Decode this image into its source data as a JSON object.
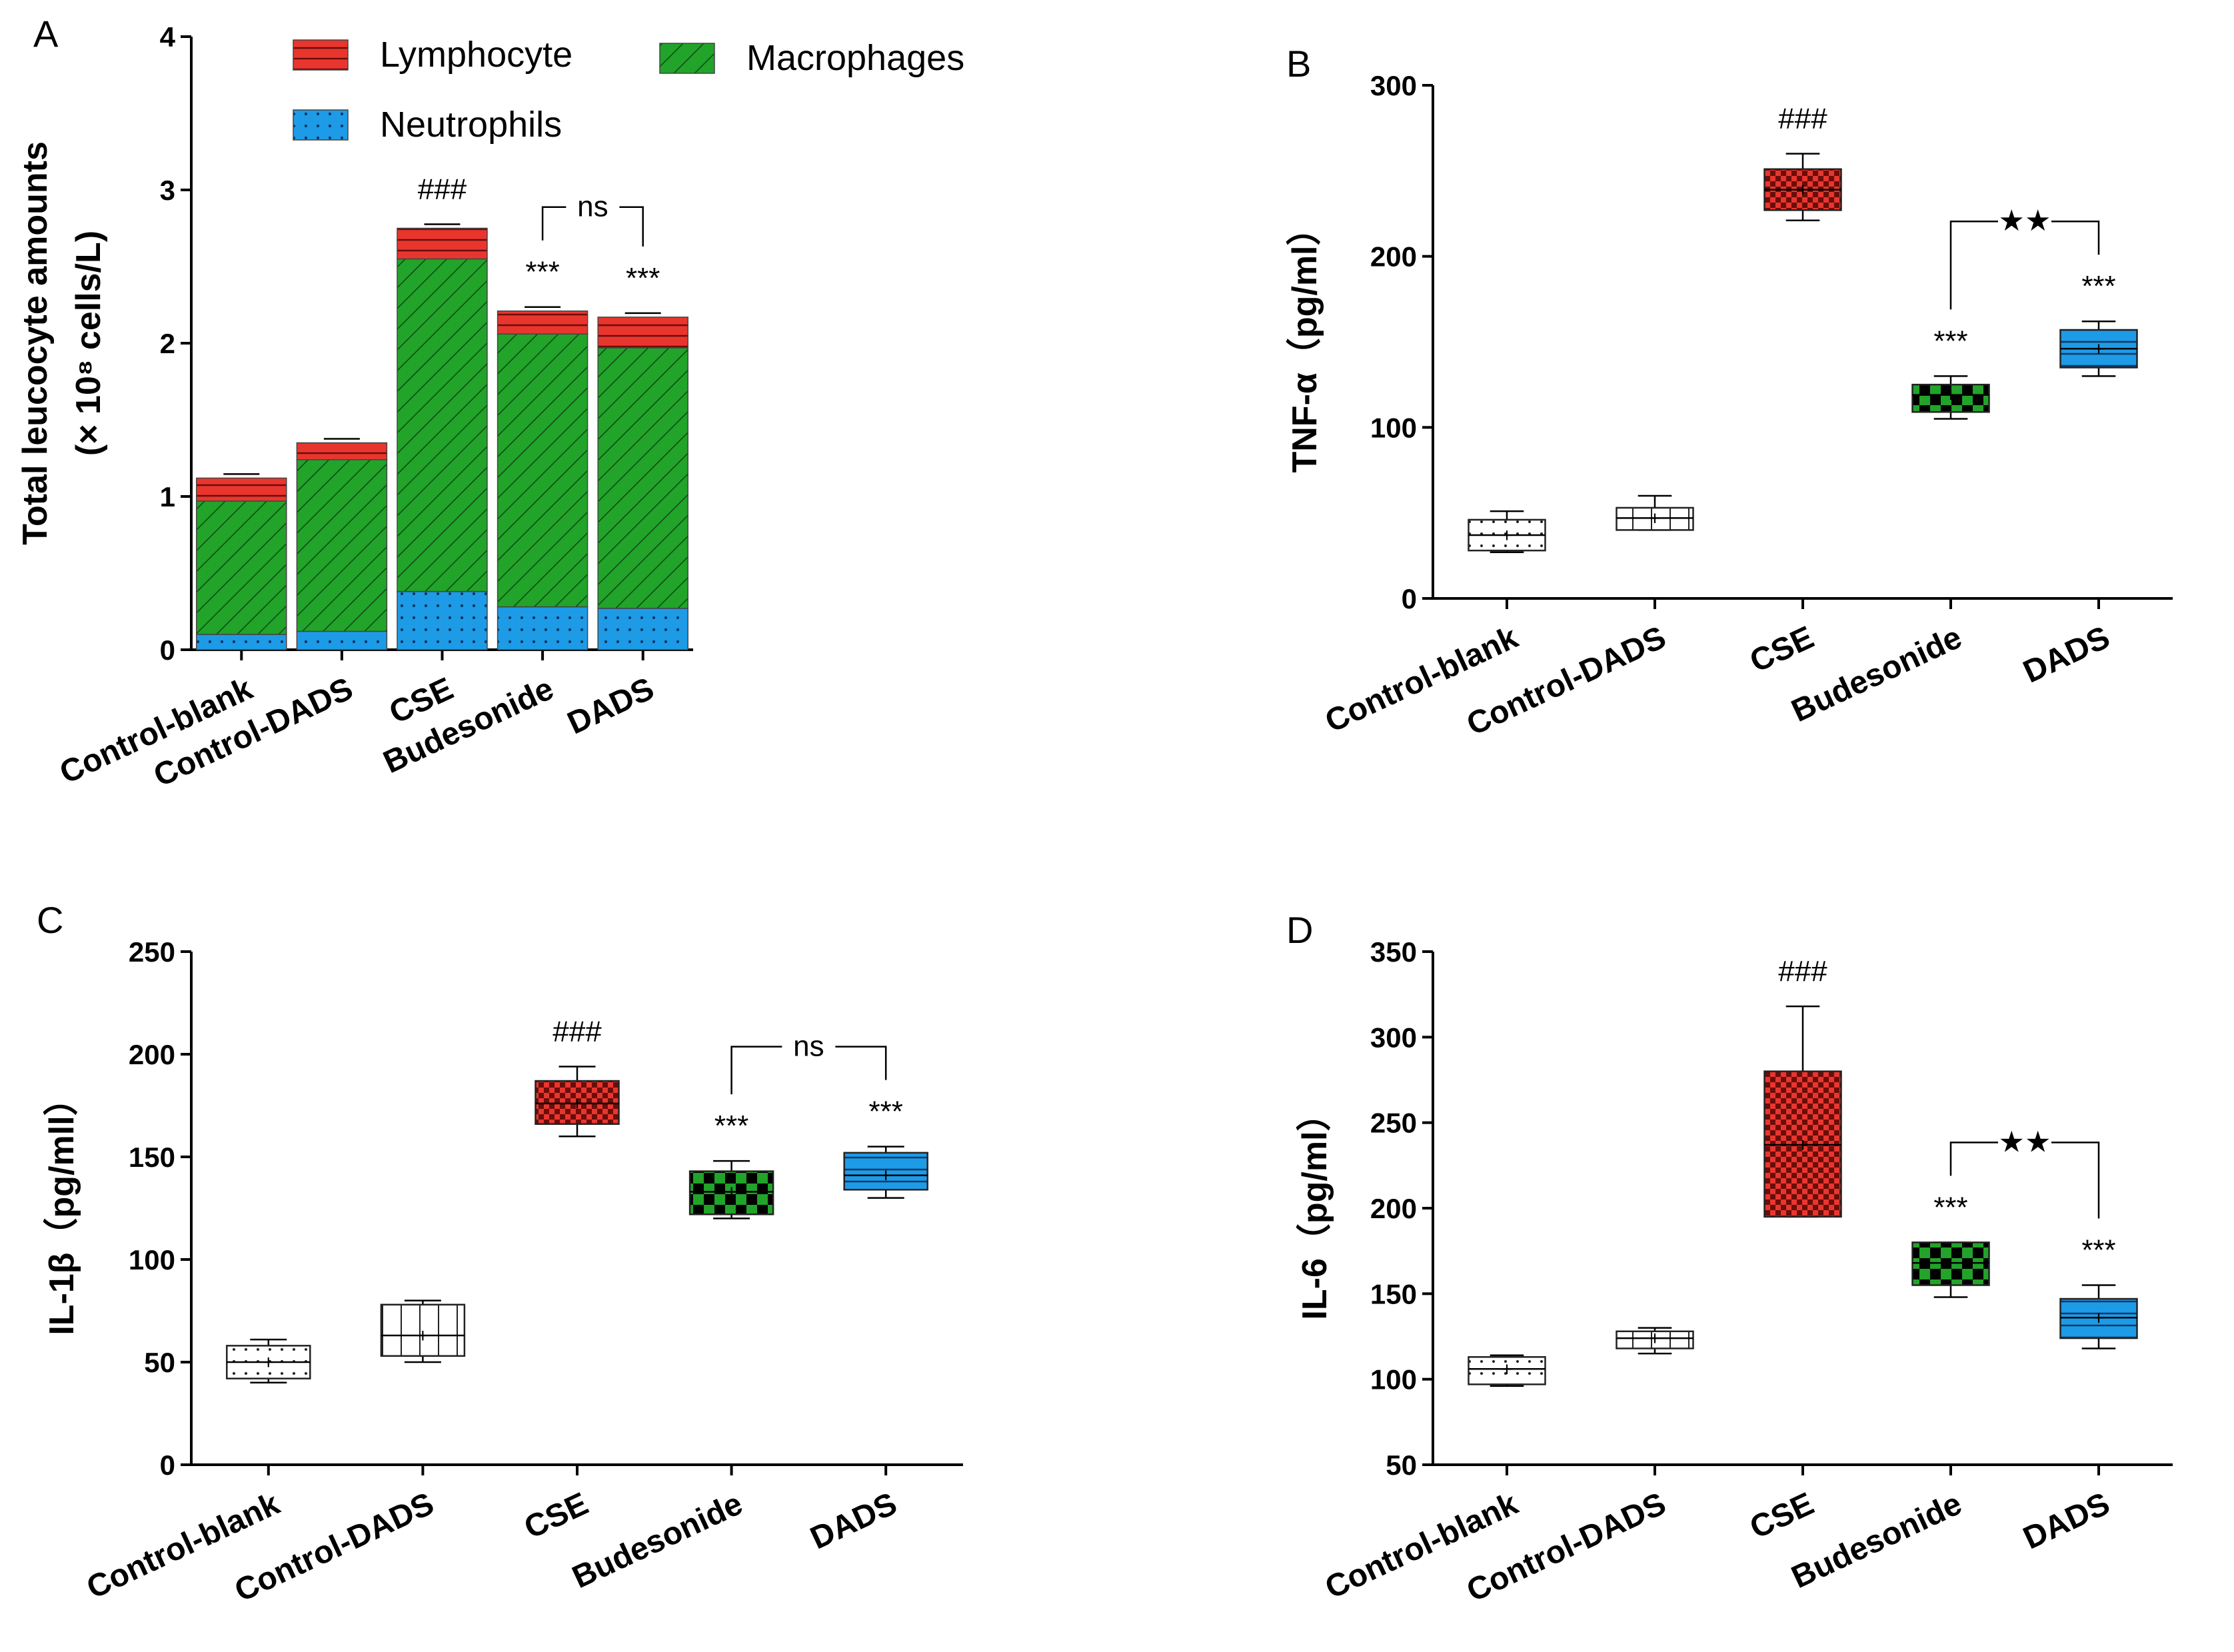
{
  "colors": {
    "red": "#e8362e",
    "green": "#22a32a",
    "blue": "#1e9be6",
    "white": "#ffffff",
    "black": "#000000"
  },
  "chart_data": [
    {
      "panel": "A",
      "type": "bar",
      "stacked": true,
      "categories": [
        "Control-blank",
        "Control-DADS",
        "CSE",
        "Budesonide",
        "DADS"
      ],
      "series": [
        {
          "name": "Neutrophils",
          "values": [
            0.1,
            0.12,
            0.38,
            0.28,
            0.27
          ],
          "pattern": "dots",
          "color_key": "blue"
        },
        {
          "name": "Macrophages",
          "values": [
            0.87,
            1.12,
            2.17,
            1.78,
            1.7
          ],
          "pattern": "hatch",
          "color_key": "green"
        },
        {
          "name": "Lymphocyte",
          "values": [
            0.15,
            0.11,
            0.2,
            0.15,
            0.2
          ],
          "pattern": "lines",
          "color_key": "red"
        }
      ],
      "legend": [
        "Lymphocyte",
        "Macrophages",
        "Neutrophils"
      ],
      "title": "",
      "ylabel_line1": "Total leucocyte amounts",
      "ylabel_line2": "(× 10⁸ cells/L)",
      "ylim": [
        0,
        4
      ],
      "yticks": [
        "0",
        "1",
        "2",
        "3",
        "4"
      ],
      "annotations": [
        "",
        "",
        "###",
        "***",
        "***"
      ],
      "bracket_label": "ns",
      "bracket_between": [
        3,
        4
      ]
    },
    {
      "panel": "B",
      "type": "box",
      "categories": [
        "Control-blank",
        "Control-DADS",
        "CSE",
        "Budesonide",
        "DADS"
      ],
      "boxes": [
        {
          "min": 27,
          "q1": 28,
          "median": 37,
          "mean": 37,
          "q3": 46,
          "max": 51,
          "pattern": "dots",
          "color_key": "white"
        },
        {
          "min": 40,
          "q1": 40,
          "median": 47,
          "mean": 47,
          "q3": 53,
          "max": 60,
          "pattern": "grid",
          "color_key": "white"
        },
        {
          "min": 221,
          "q1": 227,
          "median": 239,
          "mean": 239,
          "q3": 251,
          "max": 260,
          "pattern": "checker",
          "color_key": "red"
        },
        {
          "min": 105,
          "q1": 109,
          "median": 119,
          "mean": 119,
          "q3": 125,
          "max": 130,
          "pattern": "checker",
          "color_key": "green"
        },
        {
          "min": 130,
          "q1": 135,
          "median": 146,
          "mean": 146,
          "q3": 157,
          "max": 162,
          "pattern": "lines",
          "color_key": "blue"
        }
      ],
      "ylabel": "TNF-α（pg/ml）",
      "ylim": [
        0,
        300
      ],
      "yticks": [
        "0",
        "100",
        "200",
        "300"
      ],
      "annotations": [
        "",
        "",
        "###",
        "***",
        "***"
      ],
      "bracket_label": "★★",
      "bracket_between": [
        3,
        4
      ]
    },
    {
      "panel": "C",
      "type": "box",
      "categories": [
        "Control-blank",
        "Control-DADS",
        "CSE",
        "Budesonide",
        "DADS"
      ],
      "boxes": [
        {
          "min": 40,
          "q1": 42,
          "median": 50,
          "mean": 50,
          "q3": 58,
          "max": 61,
          "pattern": "dots",
          "color_key": "white"
        },
        {
          "min": 50,
          "q1": 53,
          "median": 63,
          "mean": 63,
          "q3": 78,
          "max": 80,
          "pattern": "grid",
          "color_key": "white"
        },
        {
          "min": 160,
          "q1": 166,
          "median": 176,
          "mean": 176,
          "q3": 187,
          "max": 194,
          "pattern": "checker",
          "color_key": "red"
        },
        {
          "min": 120,
          "q1": 122,
          "median": 133,
          "mean": 133,
          "q3": 143,
          "max": 148,
          "pattern": "checker",
          "color_key": "green"
        },
        {
          "min": 130,
          "q1": 134,
          "median": 141,
          "mean": 141,
          "q3": 152,
          "max": 155,
          "pattern": "lines",
          "color_key": "blue"
        }
      ],
      "ylabel": "IL-1β（pg/mll）",
      "ylim": [
        0,
        250
      ],
      "yticks": [
        "0",
        "50",
        "100",
        "150",
        "200",
        "250"
      ],
      "annotations": [
        "",
        "",
        "###",
        "***",
        "***"
      ],
      "bracket_label": "ns",
      "bracket_between": [
        3,
        4
      ]
    },
    {
      "panel": "D",
      "type": "box",
      "categories": [
        "Control-blank",
        "Control-DADS",
        "CSE",
        "Budesonide",
        "DADS"
      ],
      "boxes": [
        {
          "min": 96,
          "q1": 97,
          "median": 106,
          "mean": 106,
          "q3": 113,
          "max": 114,
          "pattern": "dots",
          "color_key": "white"
        },
        {
          "min": 115,
          "q1": 118,
          "median": 124,
          "mean": 124,
          "q3": 128,
          "max": 130,
          "pattern": "grid",
          "color_key": "white"
        },
        {
          "min": 195,
          "q1": 195,
          "median": 237,
          "mean": 237,
          "q3": 280,
          "max": 318,
          "pattern": "checker",
          "color_key": "red"
        },
        {
          "min": 148,
          "q1": 155,
          "median": 168,
          "mean": 168,
          "q3": 180,
          "max": 180,
          "pattern": "checker",
          "color_key": "green"
        },
        {
          "min": 118,
          "q1": 124,
          "median": 136,
          "mean": 136,
          "q3": 147,
          "max": 155,
          "pattern": "lines",
          "color_key": "blue"
        }
      ],
      "ylabel": "IL-6（pg/ml）",
      "ylim": [
        50,
        350
      ],
      "yticks": [
        "50",
        "100",
        "150",
        "200",
        "250",
        "300",
        "350"
      ],
      "annotations": [
        "",
        "",
        "###",
        "***",
        "***"
      ],
      "bracket_label": "★★",
      "bracket_between": [
        3,
        4
      ]
    }
  ]
}
